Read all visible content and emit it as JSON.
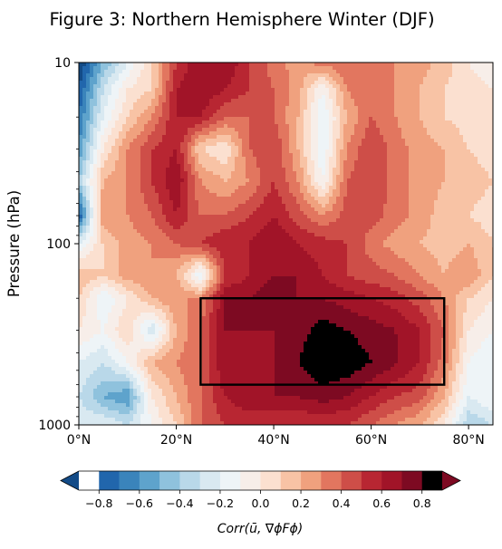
{
  "chart_data": {
    "type": "heatmap",
    "title": "Figure 3: Northern Hemisphere Winter (DJF)",
    "xlabel": "",
    "ylabel": "Pressure (hPa)",
    "x_ticks": [
      "0°N",
      "20°N",
      "40°N",
      "60°N",
      "80°N"
    ],
    "x_tick_values": [
      0,
      20,
      40,
      60,
      80
    ],
    "xlim": [
      0,
      85
    ],
    "y_scale": "log",
    "y_ticks": [
      "10",
      "100",
      "1000"
    ],
    "y_tick_values": [
      10,
      100,
      1000
    ],
    "ylim": [
      1000,
      10
    ],
    "colormap": "RdBu_r",
    "color_levels": [
      -0.9,
      -0.8,
      -0.7,
      -0.6,
      -0.5,
      -0.4,
      -0.3,
      -0.2,
      -0.1,
      0.0,
      0.1,
      0.2,
      0.3,
      0.4,
      0.5,
      0.6,
      0.7,
      0.8,
      0.9
    ],
    "level_colors": [
      "#134b87",
      "#2166ac",
      "#3a84bb",
      "#5ea3cc",
      "#8fc2dd",
      "#b9d8e9",
      "#d9e9f1",
      "#eef4f7",
      "#f7eee9",
      "#fbe0d0",
      "#f8c3a5",
      "#f0a17e",
      "#e2765f",
      "#ce4e48",
      "#b82632",
      "#a11428",
      "#7d0a22"
    ],
    "colorbar": {
      "ticks": [
        "−0.8",
        "−0.6",
        "−0.4",
        "−0.2",
        "0.0",
        "0.2",
        "0.4",
        "0.6",
        "0.8"
      ],
      "tick_values": [
        -0.8,
        -0.6,
        -0.4,
        -0.2,
        0.0,
        0.2,
        0.4,
        0.6,
        0.8
      ],
      "range": [
        -0.9,
        0.9
      ],
      "extend": "both",
      "label": "Corr(ū, ∇ϕFϕ)"
    },
    "field_grid": {
      "lat": [
        0,
        5,
        10,
        15,
        20,
        25,
        30,
        35,
        40,
        45,
        50,
        55,
        60,
        65,
        70,
        75,
        80,
        85
      ],
      "pressure": [
        10,
        14,
        20,
        30,
        45,
        70,
        100,
        150,
        200,
        300,
        450,
        700,
        1000
      ],
      "values": [
        [
          -0.9,
          -0.5,
          -0.2,
          0.1,
          0.5,
          0.7,
          0.7,
          0.5,
          0.35,
          0.25,
          0.35,
          0.4,
          0.35,
          0.3,
          0.25,
          0.15,
          0.0,
          -0.1
        ],
        [
          -0.8,
          -0.3,
          0.0,
          0.1,
          0.6,
          0.7,
          0.6,
          0.5,
          0.4,
          0.25,
          -0.1,
          0.3,
          0.4,
          0.3,
          0.2,
          0.1,
          0.05,
          0.0
        ],
        [
          -0.7,
          -0.2,
          0.1,
          0.3,
          0.6,
          0.6,
          0.4,
          0.4,
          0.4,
          0.2,
          -0.2,
          0.2,
          0.4,
          0.3,
          0.2,
          0.1,
          0.05,
          0.0
        ],
        [
          -0.6,
          0.0,
          0.3,
          0.5,
          0.6,
          0.1,
          0.0,
          0.4,
          0.5,
          0.2,
          -0.2,
          0.3,
          0.5,
          0.35,
          0.25,
          0.2,
          0.1,
          0.05
        ],
        [
          -0.4,
          0.2,
          0.3,
          0.5,
          0.7,
          0.3,
          0.2,
          0.3,
          0.5,
          0.3,
          -0.1,
          0.4,
          0.5,
          0.35,
          0.25,
          0.2,
          0.15,
          0.1
        ],
        [
          -0.8,
          0.3,
          0.3,
          0.4,
          0.6,
          0.4,
          0.4,
          0.5,
          0.6,
          0.45,
          0.3,
          0.45,
          0.45,
          0.35,
          0.25,
          0.15,
          0.1,
          0.05
        ],
        [
          -0.2,
          0.1,
          0.25,
          0.3,
          0.4,
          0.5,
          0.6,
          0.6,
          0.7,
          0.6,
          0.55,
          0.5,
          0.35,
          0.25,
          0.2,
          0.15,
          0.2,
          0.1
        ],
        [
          0.2,
          0.1,
          0.25,
          0.3,
          0.2,
          -0.2,
          0.5,
          0.6,
          0.7,
          0.7,
          0.6,
          0.5,
          0.45,
          0.4,
          0.3,
          0.2,
          0.3,
          0.1
        ],
        [
          0.1,
          -0.2,
          0.0,
          0.2,
          0.3,
          0.3,
          0.7,
          0.7,
          0.8,
          0.7,
          0.7,
          0.65,
          0.6,
          0.55,
          0.45,
          0.3,
          0.1,
          0.0
        ],
        [
          0.0,
          -0.1,
          0.1,
          -0.3,
          0.2,
          0.4,
          0.7,
          0.7,
          0.7,
          0.75,
          0.85,
          0.8,
          0.75,
          0.7,
          0.6,
          0.4,
          0.0,
          -0.1
        ],
        [
          -0.2,
          -0.3,
          -0.1,
          0.2,
          0.3,
          0.4,
          0.7,
          0.6,
          0.7,
          0.8,
          0.9,
          0.88,
          0.8,
          0.72,
          0.6,
          0.35,
          -0.1,
          -0.2
        ],
        [
          -0.3,
          -0.5,
          -0.6,
          0.0,
          0.2,
          0.4,
          0.6,
          0.7,
          0.7,
          0.7,
          0.75,
          0.7,
          0.6,
          0.5,
          0.45,
          0.2,
          -0.2,
          -0.1
        ],
        [
          -0.2,
          -0.2,
          -0.3,
          -0.1,
          0.1,
          0.4,
          0.5,
          0.5,
          0.5,
          0.5,
          0.5,
          0.5,
          0.4,
          0.3,
          0.2,
          0.0,
          -0.4,
          -0.3
        ]
      ]
    },
    "annotation_box": {
      "lat_range": [
        25,
        75
      ],
      "pressure_range": [
        200,
        600
      ]
    }
  }
}
